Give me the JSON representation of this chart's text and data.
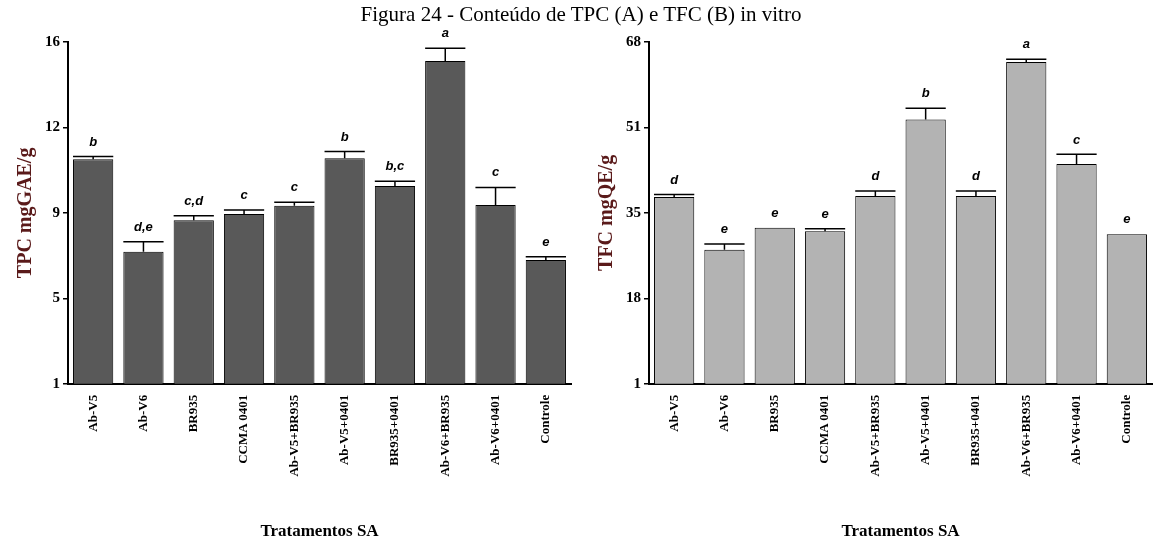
{
  "chart_data": [
    {
      "type": "bar",
      "title": "Figura 24 - Conteúdo de TPC (A) e TFC (B) in vitro",
      "xlabel": "Tratamentos SA",
      "ylabel": "TPC mgGAE/g",
      "categories": [
        "Ab-V5",
        "Ab-V6",
        "BR935",
        "CCMA 0401",
        "Ab-V5+BR935",
        "Ab-V5+0401",
        "BR935+0401",
        "Ab-V6+BR935",
        "Ab-V6+0401",
        "Controle"
      ],
      "values": [
        10.85,
        6.79,
        8.18,
        8.45,
        8.81,
        10.9,
        9.68,
        15.17,
        8.85,
        6.43
      ],
      "errors": [
        0.12,
        0.44,
        0.2,
        0.18,
        0.16,
        0.29,
        0.21,
        0.56,
        0.77,
        0.15
      ],
      "color": "#595959",
      "ylim": [
        1,
        16
      ],
      "yticks": [
        1,
        {
          "value": 4.75,
          "label": "5"
        },
        {
          "value": 8.5,
          "label": "9"
        },
        {
          "value": 12.25,
          "label": "12"
        },
        16
      ],
      "grid": false,
      "legend": false,
      "annotations": [
        {
          "text": "b",
          "x": "Ab-V5",
          "y": 10.97
        },
        {
          "text": "d,e",
          "x": "Ab-V6",
          "y": 7.23
        },
        {
          "text": "c,d",
          "x": "BR935",
          "y": 8.38
        },
        {
          "text": "c",
          "x": "CCMA 0401",
          "y": 8.63
        },
        {
          "text": "c",
          "x": "Ab-V5+BR935",
          "y": 8.97
        },
        {
          "text": "b",
          "x": "Ab-V5+0401",
          "y": 11.19
        },
        {
          "text": "b,c",
          "x": "BR935+0401",
          "y": 9.89
        },
        {
          "text": "a",
          "x": "Ab-V6+BR935",
          "y": 15.73
        },
        {
          "text": "c",
          "x": "Ab-V6+0401",
          "y": 9.62
        },
        {
          "text": "e",
          "x": "Controle",
          "y": 6.58
        }
      ]
    },
    {
      "type": "bar",
      "xlabel": "Tratamentos SA",
      "ylabel": "TFC mgQE/g",
      "categories": [
        "Ab-V5",
        "Ab-V6",
        "BR935",
        "CCMA 0401",
        "Ab-V5+BR935",
        "Ab-V5+0401",
        "BR935+0401",
        "Ab-V6+BR935",
        "Ab-V6+0401",
        "Controle"
      ],
      "values": [
        37.6,
        27.3,
        31.6,
        30.9,
        37.8,
        52.8,
        37.8,
        64.1,
        44.1,
        30.3
      ],
      "errors": [
        0.5,
        1.1,
        null,
        0.5,
        1.0,
        2.2,
        1.0,
        0.5,
        1.9,
        null
      ],
      "color": "#b3b3b3",
      "ylim": [
        1,
        68
      ],
      "yticks": [
        1,
        {
          "value": 17.75,
          "label": "18"
        },
        {
          "value": 34.5,
          "label": "35"
        },
        {
          "value": 51.25,
          "label": "51"
        },
        68
      ],
      "grid": false,
      "legend": false,
      "annotations": [
        {
          "text": "d",
          "x": "Ab-V5",
          "y": 38.1
        },
        {
          "text": "e",
          "x": "Ab-V6",
          "y": 28.4
        },
        {
          "text": "e",
          "x": "BR935",
          "y": 31.6
        },
        {
          "text": "e",
          "x": "CCMA 0401",
          "y": 31.4
        },
        {
          "text": "d",
          "x": "Ab-V5+BR935",
          "y": 38.77
        },
        {
          "text": "b",
          "x": "Ab-V5+0401",
          "y": 55.05
        },
        {
          "text": "d",
          "x": "BR935+0401",
          "y": 38.77
        },
        {
          "text": "a",
          "x": "Ab-V6+BR935",
          "y": 64.6
        },
        {
          "text": "c",
          "x": "Ab-V6+0401",
          "y": 45.9
        },
        {
          "text": "e",
          "x": "Controle",
          "y": 30.3
        }
      ]
    }
  ]
}
